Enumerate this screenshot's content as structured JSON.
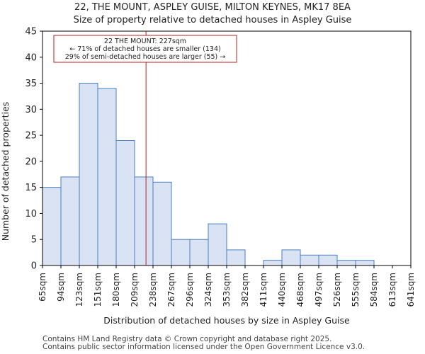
{
  "page": {
    "title_line1": "22, THE MOUNT, ASPLEY GUISE, MILTON KEYNES, MK17 8EA",
    "title_line2": "Size of property relative to detached houses in Aspley Guise",
    "footer_line1": "Contains HM Land Registry data © Crown copyright and database right 2025.",
    "footer_line2": "Contains public sector information licensed under the Open Government Licence v3.0."
  },
  "chart_data": {
    "type": "bar",
    "xlabel": "Distribution of detached houses by size in Aspley Guise",
    "ylabel": "Number of detached properties",
    "ylim": [
      0,
      45
    ],
    "yticks": [
      0,
      5,
      10,
      15,
      20,
      25,
      30,
      35,
      40,
      45
    ],
    "bin_edges": [
      "65sqm",
      "94sqm",
      "123sqm",
      "151sqm",
      "180sqm",
      "209sqm",
      "238sqm",
      "267sqm",
      "296sqm",
      "324sqm",
      "353sqm",
      "382sqm",
      "411sqm",
      "440sqm",
      "468sqm",
      "497sqm",
      "526sqm",
      "555sqm",
      "584sqm",
      "613sqm",
      "641sqm"
    ],
    "values": [
      15,
      17,
      35,
      34,
      24,
      17,
      16,
      5,
      5,
      8,
      3,
      0,
      1,
      3,
      2,
      2,
      1,
      1,
      0,
      0
    ],
    "marker_value_sqm": 227,
    "bin_edge_values_sqm": [
      65,
      94,
      123,
      151,
      180,
      209,
      238,
      267,
      296,
      324,
      353,
      382,
      411,
      440,
      468,
      497,
      526,
      555,
      584,
      613,
      641
    ],
    "annotation": {
      "line1": "22 THE MOUNT: 227sqm",
      "line2": "← 71% of detached houses are smaller (134)",
      "line3": "29% of semi-detached houses are larger (55) →"
    },
    "colors": {
      "bar_fill": "#dae3f3",
      "bar_edge": "#4a7ec0",
      "marker": "#b22222",
      "annotation_border": "#b22222"
    },
    "grid": false,
    "legend": "none"
  }
}
